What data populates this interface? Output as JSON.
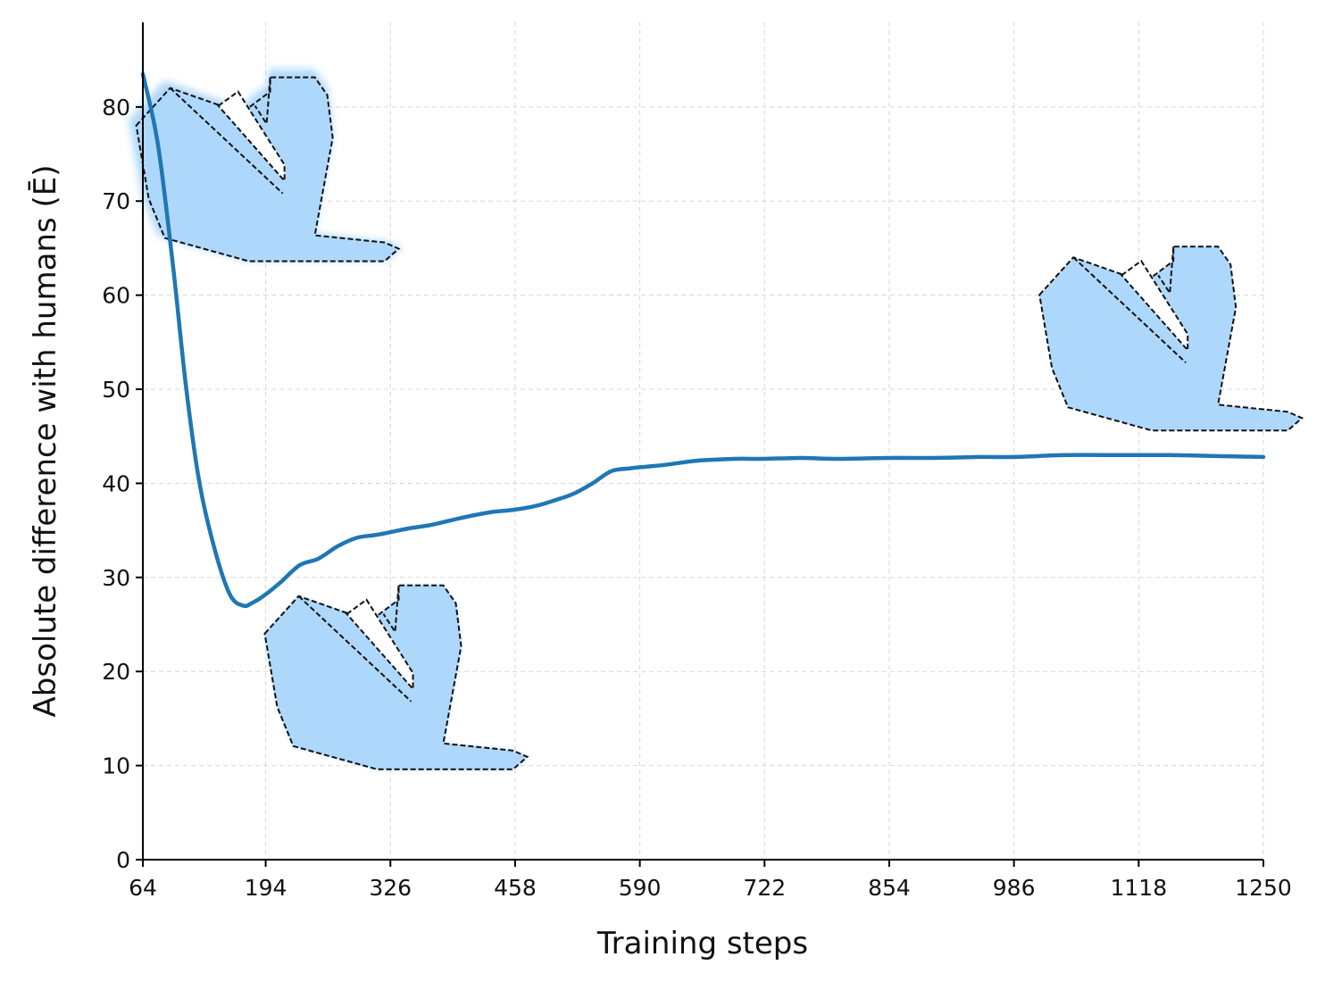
{
  "chart_data": {
    "type": "line",
    "title": "",
    "xlabel": "Training steps",
    "ylabel": "Absolute difference with humans (Ē)",
    "xlim": [
      64,
      1250
    ],
    "ylim": [
      0,
      89
    ],
    "xticks": [
      64,
      194,
      326,
      458,
      590,
      722,
      854,
      986,
      1118,
      1250
    ],
    "yticks": [
      0,
      10,
      20,
      30,
      40,
      50,
      60,
      70,
      80
    ],
    "grid": true,
    "colors": {
      "line": "#1f77b4",
      "glyph": "#aed8fb"
    },
    "series": [
      {
        "x": [
          64,
          80,
          96,
          110,
          124,
          140,
          156,
          170,
          180,
          194,
          210,
          230,
          250,
          270,
          290,
          310,
          326,
          345,
          370,
          400,
          430,
          458,
          480,
          500,
          520,
          540,
          560,
          580,
          600,
          620,
          650,
          690,
          722,
          760,
          800,
          854,
          900,
          950,
          986,
          1040,
          1100,
          1150,
          1200,
          1250
        ],
        "y": [
          83.5,
          76,
          63,
          50,
          40,
          33,
          28.2,
          27,
          27.3,
          28.2,
          29.5,
          31.3,
          32,
          33.3,
          34.2,
          34.5,
          34.8,
          35.2,
          35.6,
          36.3,
          36.9,
          37.2,
          37.6,
          38.2,
          38.9,
          40,
          41.3,
          41.6,
          41.8,
          42,
          42.4,
          42.6,
          42.6,
          42.7,
          42.6,
          42.7,
          42.7,
          42.8,
          42.8,
          43,
          43,
          43,
          42.9,
          42.8
        ]
      }
    ],
    "annotations": [
      {
        "type": "glyph",
        "style": "blurred",
        "x": 194,
        "y": 73
      },
      {
        "type": "glyph",
        "style": "partially-blurred",
        "x": 330,
        "y": 19
      },
      {
        "type": "glyph",
        "style": "sharp",
        "x": 1150,
        "y": 55
      }
    ]
  }
}
